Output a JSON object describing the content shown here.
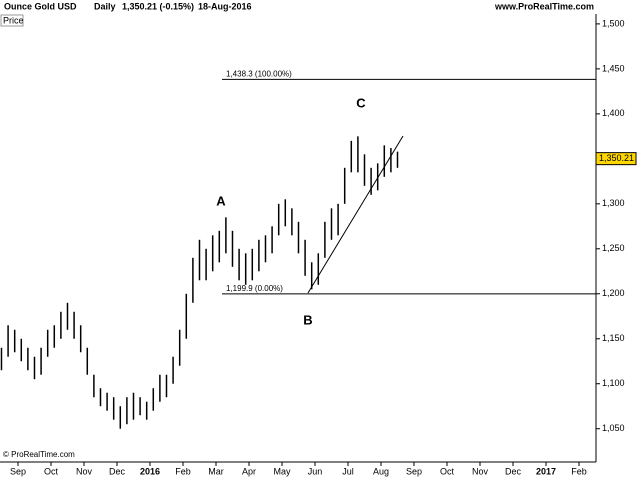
{
  "chart_data": {
    "type": "ohlc",
    "title": "Ounce Gold USD",
    "period": "Daily",
    "last_text": "1,350.21 (-0.15%)",
    "date": "18-Aug-2016",
    "source": "www.ProRealTime.com",
    "copyright": "© ProRealTime.com",
    "pane_label": "Price",
    "color": "#000000",
    "x": [
      -0.5,
      -0.3,
      -0.1,
      0.1,
      0.3,
      0.5,
      0.7,
      0.9,
      1.1,
      1.3,
      1.5,
      1.7,
      1.9,
      2.1,
      2.3,
      2.5,
      2.7,
      2.9,
      3.1,
      3.3,
      3.5,
      3.7,
      3.9,
      4.1,
      4.3,
      4.5,
      4.7,
      4.9,
      5.1,
      5.3,
      5.5,
      5.7,
      5.9,
      6.1,
      6.3,
      6.5,
      6.7,
      6.9,
      7.1,
      7.3,
      7.5,
      7.7,
      7.9,
      8.1,
      8.3,
      8.5,
      8.7,
      8.9,
      9.1,
      9.3,
      9.5,
      9.7,
      9.9,
      10.1,
      10.3,
      10.5,
      10.7,
      10.9,
      11.1,
      11.3,
      11.5
    ],
    "low": [
      1115,
      1130,
      1135,
      1125,
      1115,
      1105,
      1110,
      1130,
      1140,
      1150,
      1160,
      1150,
      1135,
      1110,
      1085,
      1075,
      1070,
      1060,
      1050,
      1055,
      1060,
      1065,
      1060,
      1070,
      1080,
      1085,
      1100,
      1120,
      1150,
      1190,
      1215,
      1215,
      1225,
      1235,
      1245,
      1230,
      1215,
      1210,
      1215,
      1225,
      1235,
      1245,
      1265,
      1275,
      1265,
      1245,
      1220,
      1205,
      1210,
      1240,
      1260,
      1265,
      1300,
      1335,
      1335,
      1320,
      1310,
      1315,
      1330,
      1335,
      1340
    ],
    "high": [
      1140,
      1165,
      1160,
      1150,
      1140,
      1130,
      1140,
      1160,
      1165,
      1180,
      1190,
      1180,
      1165,
      1140,
      1110,
      1095,
      1090,
      1085,
      1075,
      1085,
      1090,
      1085,
      1080,
      1095,
      1110,
      1110,
      1130,
      1160,
      1200,
      1240,
      1260,
      1250,
      1265,
      1270,
      1285,
      1270,
      1250,
      1245,
      1250,
      1260,
      1265,
      1275,
      1300,
      1305,
      1295,
      1280,
      1260,
      1235,
      1245,
      1280,
      1295,
      1300,
      1340,
      1370,
      1375,
      1355,
      1340,
      1345,
      1365,
      1362,
      1358
    ],
    "last_value": 1350.21,
    "last_label": "1,350.21",
    "levels": [
      {
        "value": 1438.3,
        "label": "1,438.3 (100.00%)"
      },
      {
        "value": 1199.9,
        "label": "1,199.9 (0.00%)"
      }
    ],
    "annotations": [
      "A",
      "B",
      "C"
    ],
    "ylim": [
      1013,
      1511
    ],
    "yticks": [
      {
        "value": 1050,
        "label": "1,050"
      },
      {
        "value": 1100,
        "label": "1,100"
      },
      {
        "value": 1150,
        "label": "1,150"
      },
      {
        "value": 1200,
        "label": "1,200"
      },
      {
        "value": 1250,
        "label": "1,250"
      },
      {
        "value": 1300,
        "label": "1,300"
      },
      {
        "value": 1350,
        "label": "1,350"
      },
      {
        "value": 1400,
        "label": "1,400"
      },
      {
        "value": 1450,
        "label": "1,450"
      },
      {
        "value": 1500,
        "label": "1,500"
      }
    ],
    "xlim": [
      -0.545,
      17.515
    ],
    "xticks": [
      {
        "value": 0,
        "label": "Sep"
      },
      {
        "value": 1,
        "label": "Oct"
      },
      {
        "value": 2,
        "label": "Nov"
      },
      {
        "value": 3,
        "label": "Dec"
      },
      {
        "value": 4,
        "label": "2016"
      },
      {
        "value": 5,
        "label": "Feb"
      },
      {
        "value": 6,
        "label": "Mar"
      },
      {
        "value": 7,
        "label": "Apr"
      },
      {
        "value": 8,
        "label": "May"
      },
      {
        "value": 9,
        "label": "Jun"
      },
      {
        "value": 10,
        "label": "Jul"
      },
      {
        "value": 11,
        "label": "Aug"
      },
      {
        "value": 12,
        "label": "Sep"
      },
      {
        "value": 13,
        "label": "Oct"
      },
      {
        "value": 14,
        "label": "Nov"
      },
      {
        "value": 15,
        "label": "Dec"
      },
      {
        "value": 16,
        "label": "2017"
      },
      {
        "value": 17,
        "label": "Feb"
      }
    ]
  }
}
